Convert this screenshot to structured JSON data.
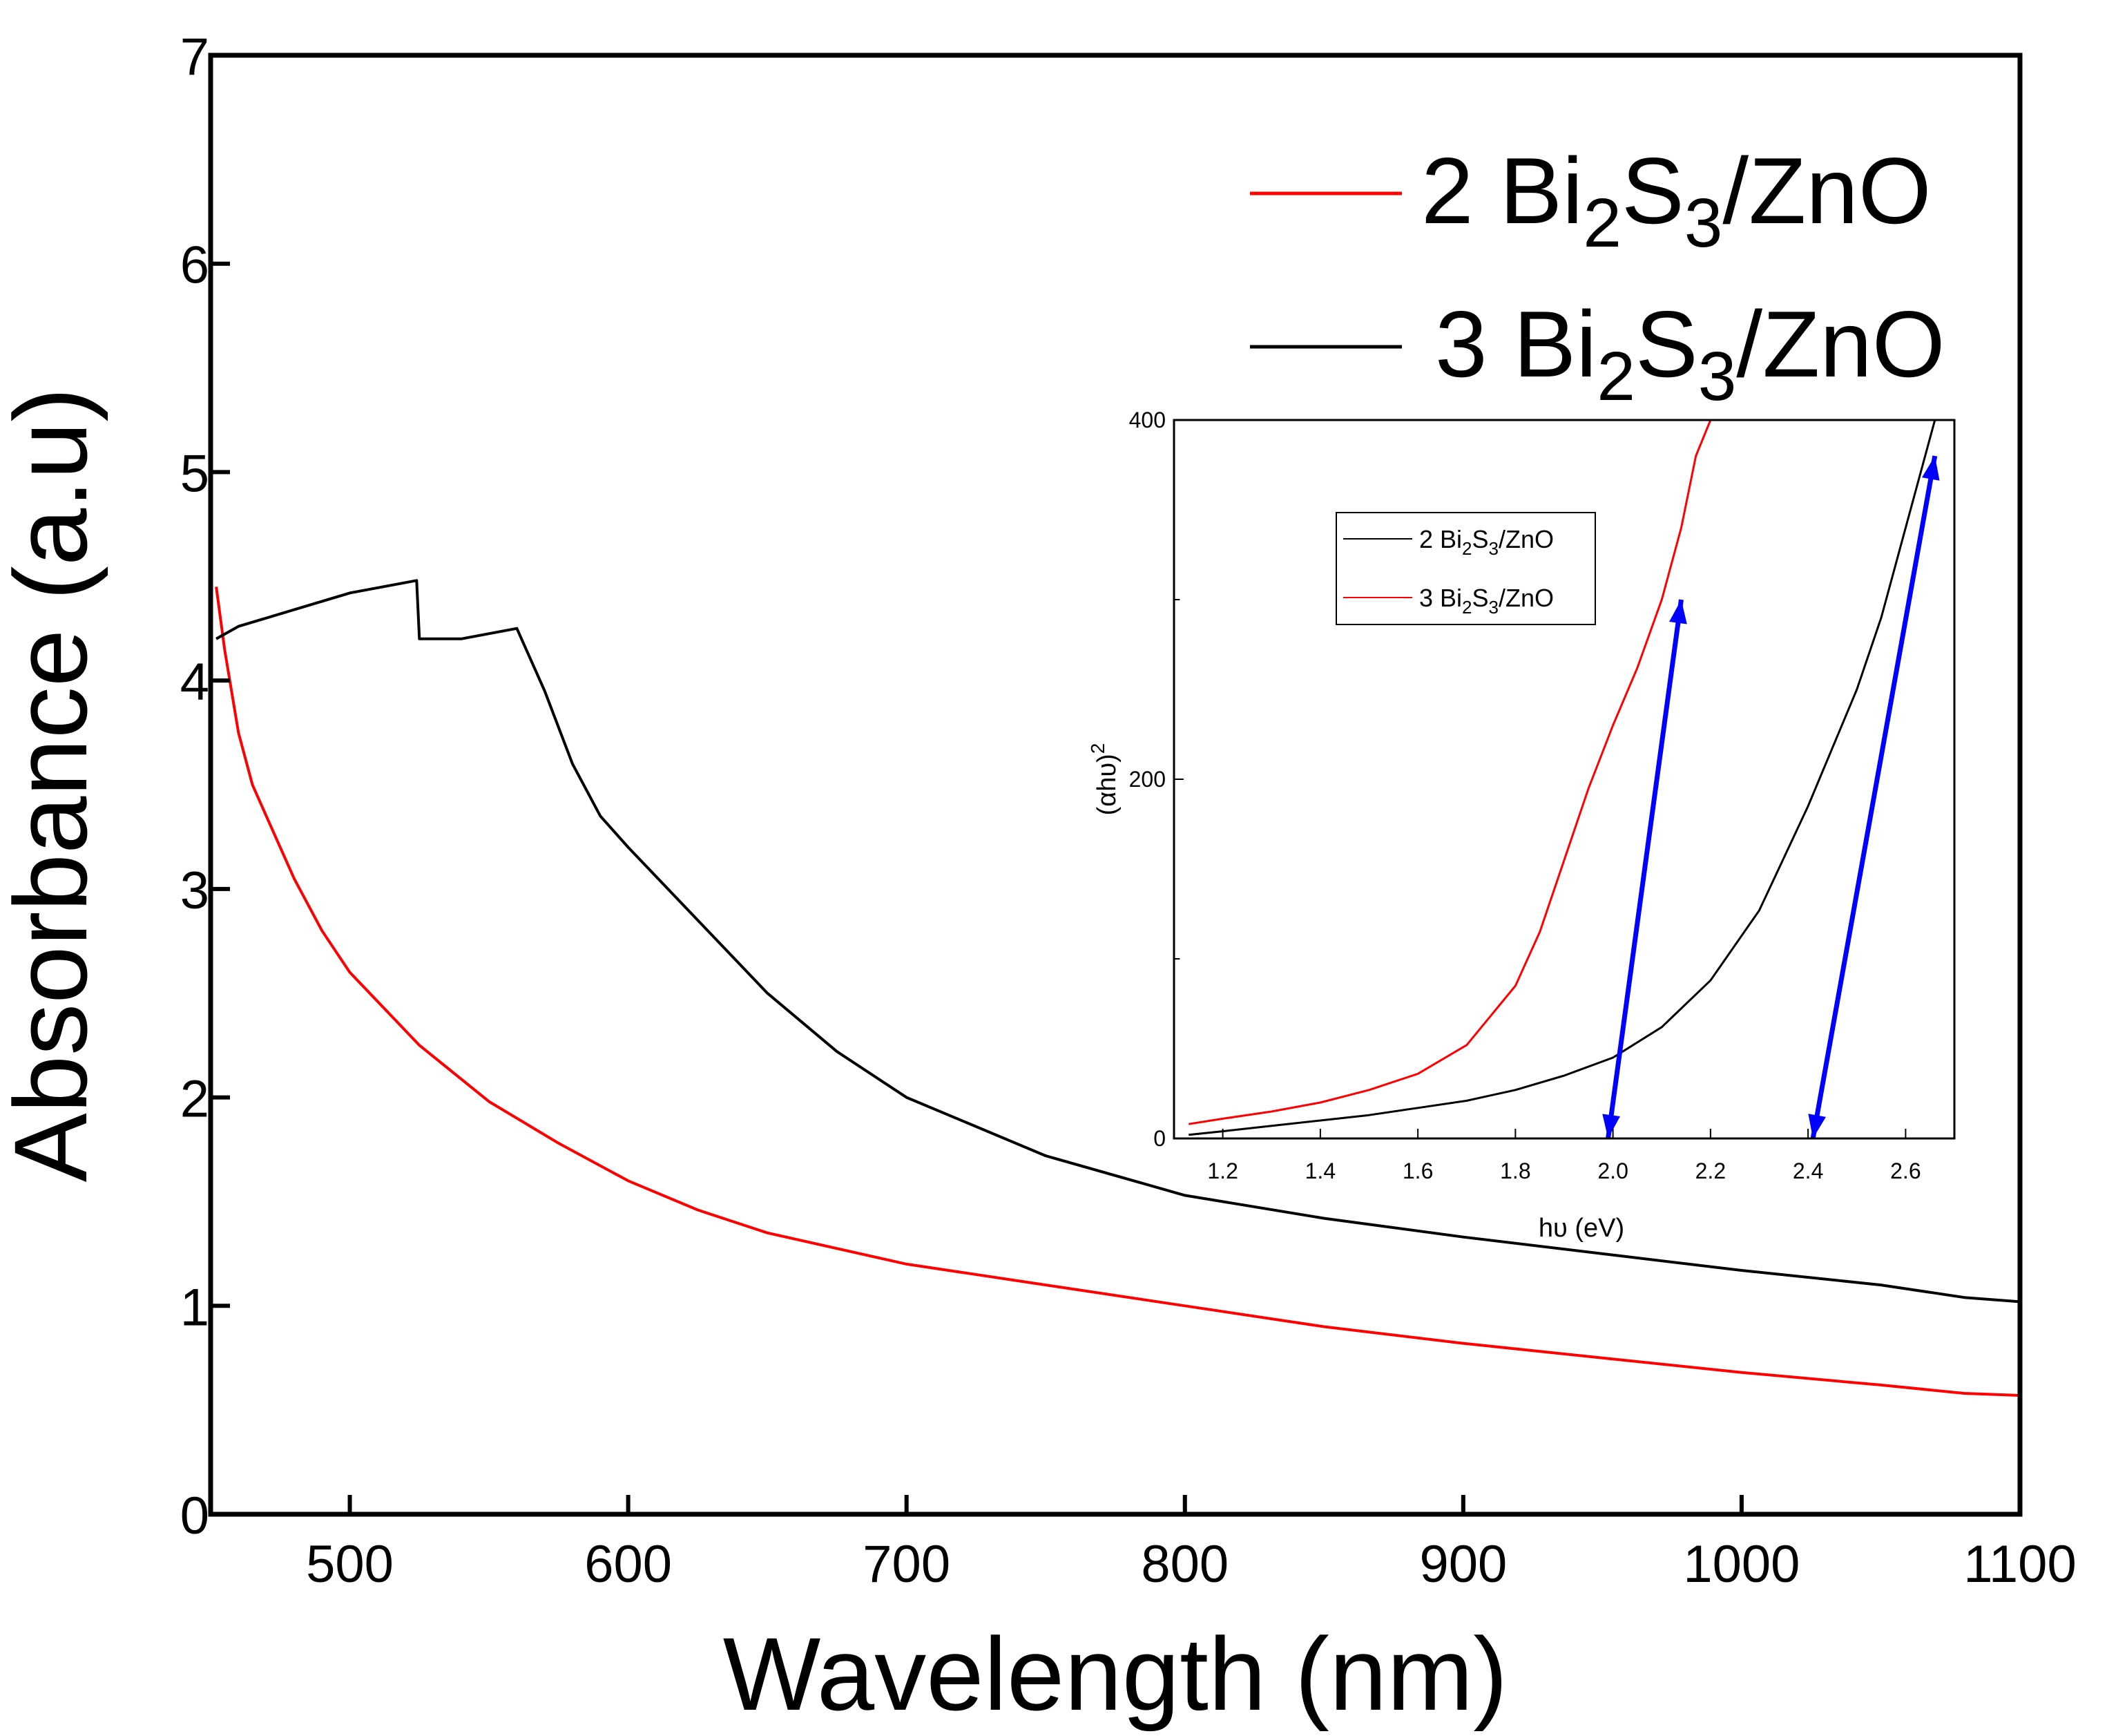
{
  "chart_data": [
    {
      "id": "main",
      "type": "line",
      "title": "",
      "xlabel": "Wavelength (nm)",
      "ylabel": "Absorbance (a.u)",
      "xlim": [
        450,
        1100
      ],
      "ylim": [
        0,
        7
      ],
      "x_ticks": [
        "500",
        "600",
        "700",
        "800",
        "900",
        "1000",
        "1100"
      ],
      "y_ticks": [
        "0",
        "1",
        "2",
        "3",
        "4",
        "5",
        "6",
        "7"
      ],
      "grid": false,
      "legend_position": "top-right",
      "series": [
        {
          "name": "2 Bi2S3/ZnO",
          "label_parts": {
            "a": "2 Bi",
            "b": "2",
            "c": "S",
            "d": "3",
            "e": "/ZnO"
          },
          "color": "#ff0000",
          "x": [
            452,
            455,
            460,
            465,
            470,
            480,
            490,
            500,
            525,
            550,
            575,
            600,
            625,
            650,
            700,
            750,
            800,
            850,
            900,
            950,
            1000,
            1050,
            1080,
            1100
          ],
          "y": [
            4.45,
            4.15,
            3.75,
            3.5,
            3.35,
            3.05,
            2.8,
            2.6,
            2.25,
            1.98,
            1.78,
            1.6,
            1.46,
            1.35,
            1.2,
            1.1,
            1.0,
            0.9,
            0.82,
            0.75,
            0.68,
            0.62,
            0.58,
            0.57
          ]
        },
        {
          "name": "3 Bi2S3/ZnO",
          "label_parts": {
            "a": "3 Bi",
            "b": "2",
            "c": "S",
            "d": "3",
            "e": "/ZnO"
          },
          "color": "#000000",
          "x": [
            452,
            460,
            480,
            500,
            524,
            525,
            540,
            560,
            570,
            580,
            590,
            600,
            625,
            650,
            675,
            700,
            750,
            800,
            850,
            900,
            950,
            1000,
            1050,
            1080,
            1100
          ],
          "y": [
            4.2,
            4.26,
            4.34,
            4.42,
            4.48,
            4.2,
            4.2,
            4.25,
            3.95,
            3.6,
            3.35,
            3.2,
            2.85,
            2.5,
            2.22,
            2.0,
            1.72,
            1.53,
            1.42,
            1.33,
            1.25,
            1.17,
            1.1,
            1.04,
            1.02
          ]
        }
      ]
    },
    {
      "id": "inset",
      "type": "line",
      "title": "",
      "xlabel": "hυ (eV)",
      "ylabel_parts": {
        "a": "(αhυ)",
        "b": "2"
      },
      "xlim": [
        1.1,
        2.7
      ],
      "ylim": [
        0,
        400
      ],
      "x_ticks": [
        "1.2",
        "1.4",
        "1.6",
        "1.8",
        "2.0",
        "2.2",
        "2.4",
        "2.6"
      ],
      "y_ticks": [
        "0",
        "200",
        "400"
      ],
      "grid": false,
      "legend_position": "top-left",
      "series": [
        {
          "name": "2 Bi2S3/ZnO",
          "label_parts": {
            "a": "2 Bi",
            "b": "2",
            "c": "S",
            "d": "3",
            "e": "/ZnO"
          },
          "color": "#000000",
          "x": [
            1.13,
            1.2,
            1.3,
            1.4,
            1.5,
            1.6,
            1.7,
            1.8,
            1.9,
            2.0,
            2.1,
            2.2,
            2.3,
            2.4,
            2.5,
            2.55,
            2.6,
            2.63,
            2.66
          ],
          "y": [
            2,
            4,
            7,
            10,
            13,
            17,
            21,
            27,
            35,
            45,
            62,
            88,
            127,
            185,
            250,
            290,
            340,
            370,
            400
          ]
        },
        {
          "name": "3 Bi2S3/ZnO",
          "label_parts": {
            "a": "3 Bi",
            "b": "2",
            "c": "S",
            "d": "3",
            "e": "/ZnO"
          },
          "color": "#ff0000",
          "x": [
            1.13,
            1.2,
            1.3,
            1.4,
            1.5,
            1.6,
            1.7,
            1.8,
            1.85,
            1.9,
            1.95,
            2.0,
            2.05,
            2.1,
            2.14,
            2.17,
            2.2
          ],
          "y": [
            8,
            11,
            15,
            20,
            27,
            36,
            52,
            85,
            115,
            155,
            195,
            230,
            262,
            300,
            340,
            380,
            400
          ]
        }
      ],
      "tangent_lines": [
        {
          "color": "#0000ff",
          "x": [
            2.14,
            1.99
          ],
          "y": [
            300,
            0
          ]
        },
        {
          "color": "#0000ff",
          "x": [
            2.66,
            2.41
          ],
          "y": [
            380,
            0
          ]
        }
      ]
    }
  ]
}
